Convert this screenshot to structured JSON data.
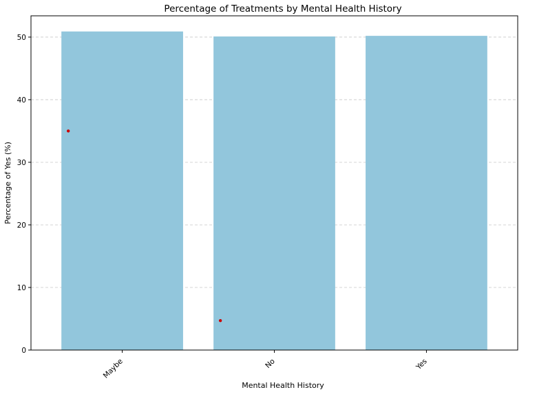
{
  "chart_data": {
    "type": "bar",
    "title": "Percentage of Treatments by Mental Health History",
    "xlabel": "Mental Health History",
    "ylabel": "Percentage of Yes (%)",
    "categories": [
      "Maybe",
      "No",
      "Yes"
    ],
    "values": [
      50.9,
      50.1,
      50.2
    ],
    "ylim": [
      0,
      53.4
    ],
    "yticks": [
      0,
      10,
      20,
      30,
      40,
      50
    ],
    "grid": "y-dashed",
    "bar_color": "#92c6dc",
    "markers": [
      {
        "category": "Maybe",
        "value": 35.0,
        "color": "#cc0000"
      },
      {
        "category": "No",
        "value": 4.7,
        "color": "#cc0000"
      }
    ]
  }
}
